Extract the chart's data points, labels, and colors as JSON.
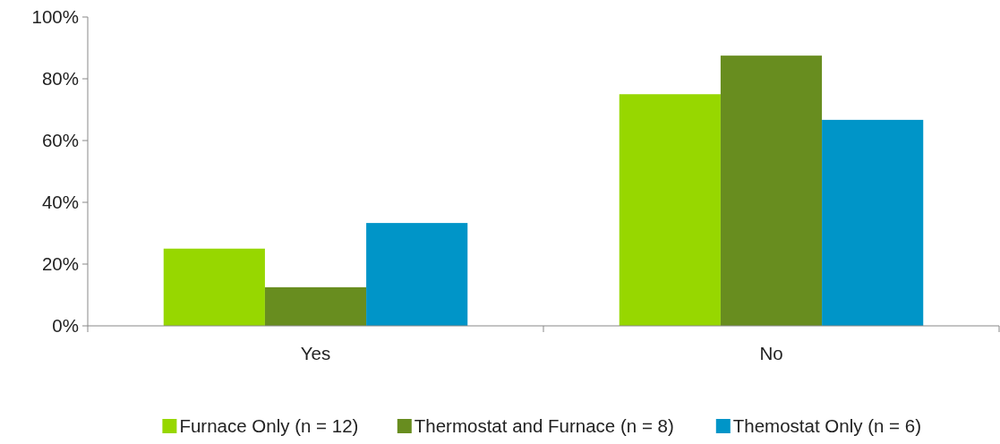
{
  "chart_data": {
    "type": "bar",
    "categories": [
      "Yes",
      "No"
    ],
    "series": [
      {
        "name": "Furnace Only (n = 12)",
        "color": "#97d700",
        "values": [
          25,
          75
        ]
      },
      {
        "name": "Thermostat and Furnace (n = 8)",
        "color": "#688d1f",
        "values": [
          12.5,
          87.5
        ]
      },
      {
        "name": "Themostat Only (n = 6)",
        "color": "#0095c8",
        "values": [
          33.3,
          66.7
        ]
      }
    ],
    "ylim": [
      0,
      100
    ],
    "yticks": [
      {
        "value": 0,
        "label": "0%"
      },
      {
        "value": 20,
        "label": "20%"
      },
      {
        "value": 40,
        "label": "40%"
      },
      {
        "value": 60,
        "label": "60%"
      },
      {
        "value": 80,
        "label": "80%"
      },
      {
        "value": 100,
        "label": "100%"
      }
    ],
    "grid": false,
    "legend": "bottom"
  }
}
